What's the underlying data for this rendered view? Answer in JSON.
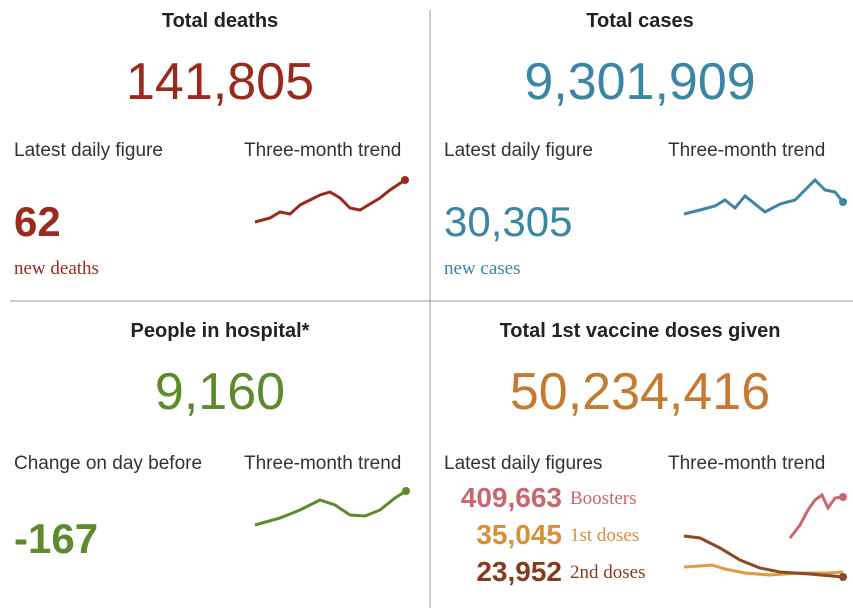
{
  "panels": [
    {
      "title": "Total deaths",
      "value": "141,805",
      "left_label": "Latest daily figure",
      "trend_label": "Three-month trend",
      "figure": "62",
      "figure_label": "new deaths"
    },
    {
      "title": "Total cases",
      "value": "9,301,909",
      "left_label": "Latest daily figure",
      "trend_label": "Three-month trend",
      "figure": "30,305",
      "figure_label": "new cases"
    },
    {
      "title": "People in hospital*",
      "value": "9,160",
      "left_label": "Change on day before",
      "trend_label": "Three-month trend",
      "figure": "-167"
    },
    {
      "title": "Total 1st vaccine doses given",
      "value": "50,234,416",
      "left_label": "Latest daily figures",
      "trend_label": "Three-month trend",
      "figures": [
        {
          "value": "409,663",
          "label": "Boosters"
        },
        {
          "value": "35,045",
          "label": "1st doses"
        },
        {
          "value": "23,952",
          "label": "2nd doses"
        }
      ]
    }
  ]
}
